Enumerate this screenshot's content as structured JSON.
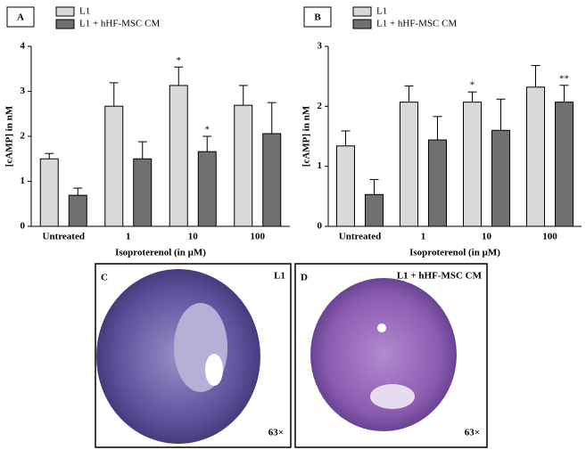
{
  "chart_data": [
    {
      "type": "bar",
      "panel": "A",
      "ylabel": "[cAMP] in nM",
      "xlabel": "Isoproterenol (in μM)",
      "categories": [
        "Untreated",
        "1",
        "10",
        "100"
      ],
      "series": [
        {
          "name": "L1",
          "color": "#d9d9d9",
          "values": [
            1.5,
            2.67,
            3.13,
            2.69
          ],
          "errors": [
            0.12,
            0.52,
            0.41,
            0.44
          ]
        },
        {
          "name": "L1 + hHF-MSC CM",
          "color": "#707070",
          "values": [
            0.69,
            1.5,
            1.66,
            2.06
          ],
          "errors": [
            0.16,
            0.38,
            0.34,
            0.69
          ]
        }
      ],
      "annotations": [
        {
          "text": "*",
          "series": 0,
          "category": 2
        },
        {
          "text": "*",
          "series": 1,
          "category": 2
        }
      ],
      "ylim": [
        0,
        4
      ],
      "yticks": [
        0,
        1,
        2,
        3,
        4
      ]
    },
    {
      "type": "bar",
      "panel": "B",
      "ylabel": "[cAMP] in nM",
      "xlabel": "Isoproterenol (in μM)",
      "categories": [
        "Untreated",
        "1",
        "10",
        "100"
      ],
      "series": [
        {
          "name": "L1",
          "color": "#d9d9d9",
          "values": [
            1.34,
            2.07,
            2.07,
            2.32
          ],
          "errors": [
            0.25,
            0.27,
            0.17,
            0.36
          ]
        },
        {
          "name": "L1 + hHF-MSC CM",
          "color": "#707070",
          "values": [
            0.53,
            1.44,
            1.6,
            2.07
          ],
          "errors": [
            0.25,
            0.39,
            0.52,
            0.28
          ]
        }
      ],
      "annotations": [
        {
          "text": "*",
          "series": 0,
          "category": 2
        },
        {
          "text": "**",
          "series": 1,
          "category": 3
        }
      ],
      "ylim": [
        0,
        3
      ],
      "yticks": [
        0,
        1,
        2,
        3
      ]
    }
  ],
  "images": [
    {
      "letter": "C",
      "label": "L1",
      "magnification": "63×"
    },
    {
      "letter": "D",
      "label": "L1 + hHF-MSC CM",
      "magnification": "63×"
    }
  ]
}
